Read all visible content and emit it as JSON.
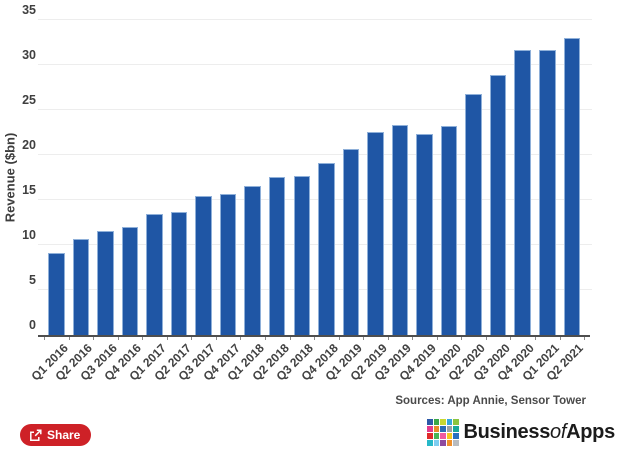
{
  "chart_data": {
    "type": "bar",
    "title": "",
    "xlabel": "",
    "ylabel": "Revenue ($bn)",
    "categories": [
      "Q1 2016",
      "Q2 2016",
      "Q3 2016",
      "Q4 2016",
      "Q1 2017",
      "Q2 2017",
      "Q3 2017",
      "Q4 2017",
      "Q1 2018",
      "Q2 2018",
      "Q3 2018",
      "Q4 2018",
      "Q1 2019",
      "Q2 2019",
      "Q3 2019",
      "Q4 2019",
      "Q1 2020",
      "Q2 2020",
      "Q3 2020",
      "Q4 2020",
      "Q1 2021",
      "Q2 2021"
    ],
    "values": [
      9.1,
      10.7,
      11.6,
      12.0,
      13.5,
      13.7,
      15.4,
      15.7,
      16.6,
      17.6,
      17.7,
      19.1,
      20.7,
      22.6,
      23.3,
      22.3,
      23.2,
      26.8,
      28.9,
      31.7,
      31.7,
      33.0
    ],
    "ylim": [
      0,
      35
    ],
    "y_ticks": [
      0,
      5,
      10,
      15,
      20,
      25,
      30,
      35
    ],
    "grid": true,
    "legend_position": "none",
    "bar_color": "#1f56a5",
    "bar_edge_color": "#8fb0d9"
  },
  "footer": {
    "sources": "Sources: App Annie, Sensor Tower",
    "share_label": "Share"
  },
  "branding": {
    "part1": "Business",
    "part2": "of",
    "part3": "Apps",
    "grid_colors": [
      "#2c59a8",
      "#3aa748",
      "#c8d832",
      "#35a8dc",
      "#8bc53f",
      "#e23a8e",
      "#e88b28",
      "#2b6cb5",
      "#9aa0a6",
      "#19a89c",
      "#e02a2a",
      "#47b557",
      "#ef5ba1",
      "#f5c820",
      "#2a70c0",
      "#26b8c8",
      "#7ecdf0",
      "#8e4a9e",
      "#ef8f2a",
      "#b8bcc0"
    ]
  },
  "colors": {
    "grid_line": "#ededed",
    "axis_line": "#4e4e4e",
    "tick_text": "#3f3f3f",
    "share_bg": "#ce2127"
  }
}
